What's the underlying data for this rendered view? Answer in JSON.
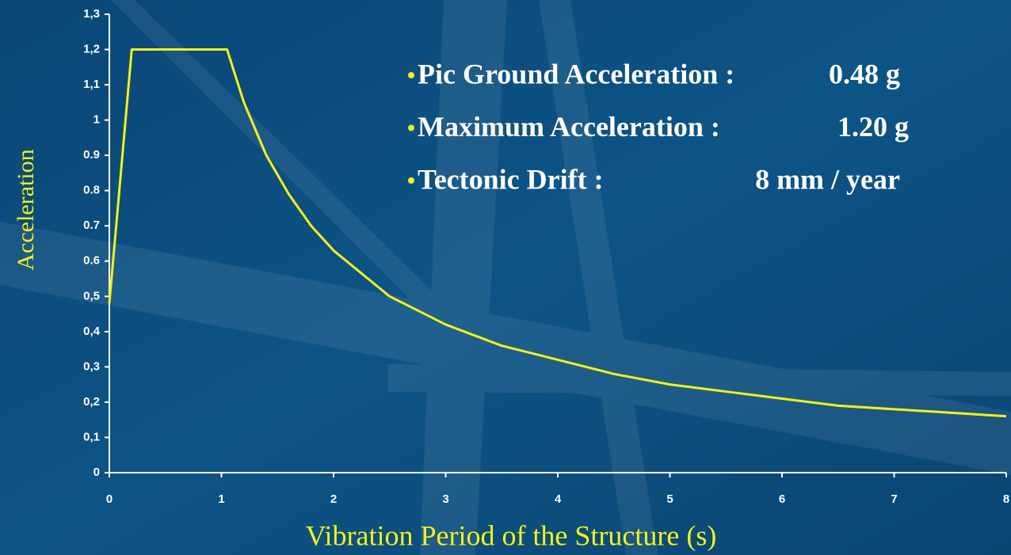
{
  "chart_data": {
    "type": "line",
    "xlabel": "Vibration Period of the Structure (s)",
    "ylabel": "Acceleration",
    "annotations": [
      {
        "label": "Pic Ground Acceleration :",
        "value": "0.48 g"
      },
      {
        "label": "Maximum Acceleration :",
        "value": "1.20 g"
      },
      {
        "label": "Tectonic Drift :",
        "value": "8 mm / year"
      }
    ],
    "x": [
      0,
      0.2,
      1.05,
      1.2,
      1.4,
      1.6,
      1.8,
      2,
      2.5,
      3,
      3.5,
      4,
      4.5,
      5,
      5.5,
      6,
      6.5,
      7,
      7.5,
      8
    ],
    "series": [
      {
        "color": "#f2f21a",
        "values": [
          0.48,
          1.2,
          1.2,
          1.05,
          0.9,
          0.79,
          0.7,
          0.63,
          0.5,
          0.42,
          0.36,
          0.32,
          0.28,
          0.25,
          0.23,
          0.21,
          0.19,
          0.18,
          0.17,
          0.16
        ]
      }
    ],
    "xlim": [
      0,
      8
    ],
    "xticks": [
      0,
      1,
      2,
      3,
      4,
      5,
      6,
      7,
      8
    ],
    "ylim": [
      0,
      1.3
    ],
    "yticks": [
      0,
      {
        "value": 0.1,
        "label": "0,1"
      },
      {
        "value": 0.2,
        "label": "0,2"
      },
      {
        "value": 0.3,
        "label": "0,3"
      },
      {
        "value": 0.4,
        "label": "0,4"
      },
      {
        "value": 0.5,
        "label": "0,5"
      },
      0.6,
      0.7,
      0.8,
      0.9,
      1,
      {
        "value": 1.1,
        "label": "1,1"
      },
      {
        "value": 1.2,
        "label": "1,2"
      },
      {
        "value": 1.3,
        "label": "1,3"
      }
    ]
  }
}
